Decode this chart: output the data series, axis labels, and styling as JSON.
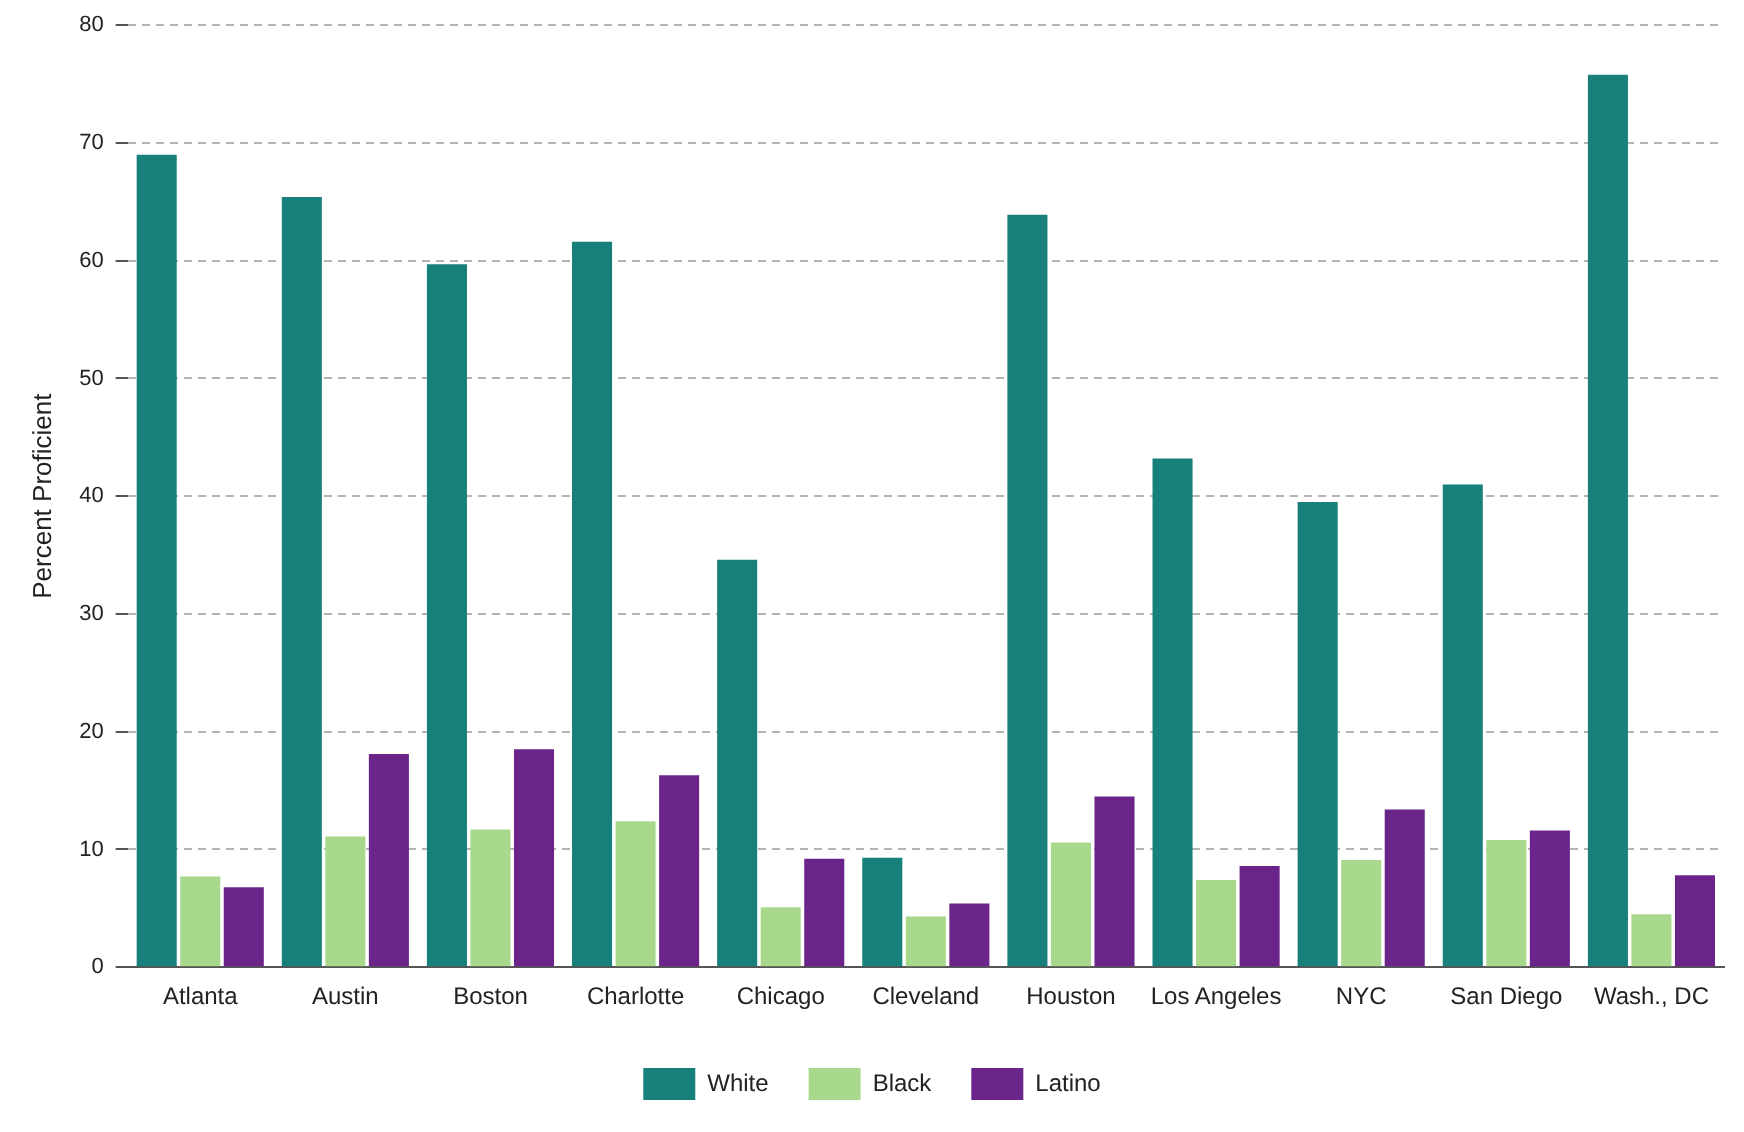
{
  "chart_data": {
    "type": "bar",
    "ylabel": "Percent Proficient",
    "categories": [
      "Atlanta",
      "Austin",
      "Boston",
      "Charlotte",
      "Chicago",
      "Cleveland",
      "Houston",
      "Los Angeles",
      "NYC",
      "San Diego",
      "Wash., DC"
    ],
    "series": [
      {
        "name": "White",
        "color": "#17807a",
        "values": [
          69,
          65.4,
          59.7,
          61.6,
          34.6,
          9.3,
          63.9,
          43.2,
          39.5,
          41,
          75.8
        ]
      },
      {
        "name": "Black",
        "color": "#a8d88c",
        "values": [
          7.7,
          11.1,
          11.7,
          12.4,
          5.1,
          4.3,
          10.6,
          7.4,
          9.1,
          10.8,
          4.5
        ]
      },
      {
        "name": "Latino",
        "color": "#6b2489",
        "values": [
          6.8,
          18.1,
          18.5,
          16.3,
          9.2,
          5.4,
          14.5,
          8.6,
          13.4,
          11.6,
          7.8
        ]
      }
    ],
    "ylim": [
      0,
      80
    ],
    "yticks": [
      0,
      10,
      20,
      30,
      40,
      50,
      60,
      70,
      80
    ],
    "grid": "y",
    "legend": "bottom"
  }
}
